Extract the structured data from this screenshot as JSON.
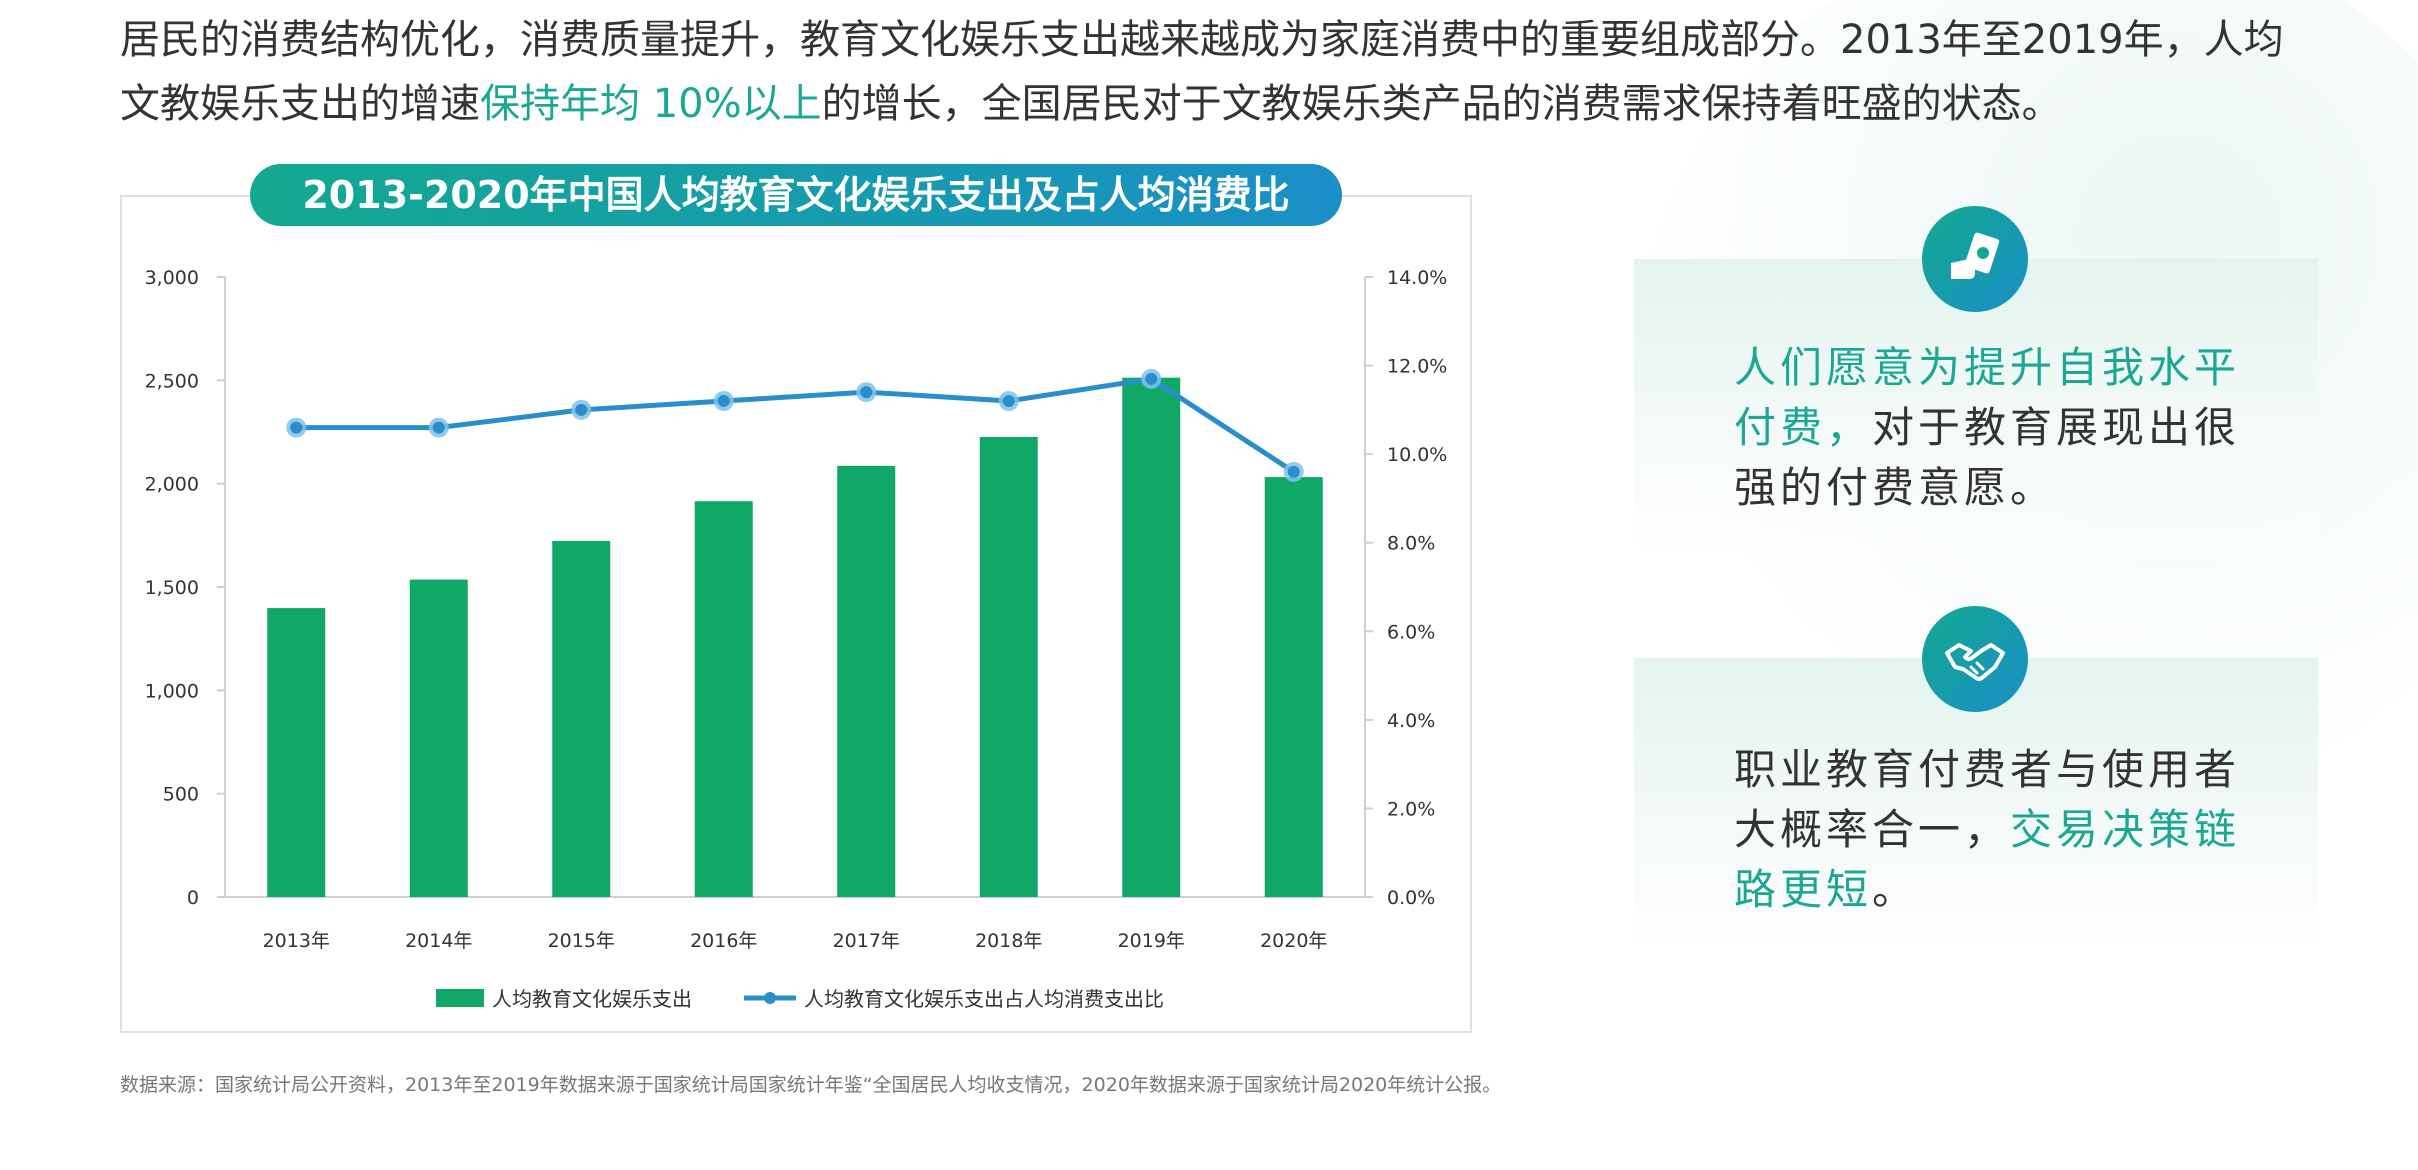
{
  "intro": {
    "part1": "居民的消费结构优化，消费质量提升，教育文化娱乐支出越来越成为家庭消费中的重要组成部分。2013年至2019年，人均文教娱乐支出的增速",
    "highlight": "保持年均 10%以上",
    "part2": "的增长，全国居民对于文教娱乐类产品的消费需求保持着旺盛的状态。"
  },
  "chart_data": {
    "type": "bar",
    "title": "2013-2020年中国人均教育文化娱乐支出及占人均消费比",
    "categories": [
      "2013年",
      "2014年",
      "2015年",
      "2016年",
      "2017年",
      "2018年",
      "2019年",
      "2020年"
    ],
    "series": [
      {
        "name": "人均教育文化娱乐支出",
        "type": "bar",
        "axis": "left",
        "values": [
          1398,
          1536,
          1723,
          1915,
          2086,
          2226,
          2513,
          2032
        ]
      },
      {
        "name": "人均教育文化娱乐支出占人均消费支出比",
        "type": "line",
        "axis": "right",
        "values": [
          10.6,
          10.6,
          11.0,
          11.2,
          11.4,
          11.2,
          11.7,
          9.6
        ]
      }
    ],
    "y_left": {
      "min": 0,
      "max": 3000,
      "ticks": [
        "0",
        "500",
        "1,000",
        "1,500",
        "2,000",
        "2,500",
        "3,000"
      ]
    },
    "y_right": {
      "min": 0,
      "max": 14,
      "ticks": [
        "0.0%",
        "2.0%",
        "4.0%",
        "6.0%",
        "8.0%",
        "10.0%",
        "12.0%",
        "14.0%"
      ]
    },
    "legend_position": "bottom",
    "grid": false,
    "colors": {
      "bar": "#11a766",
      "line": "#2a8ecb",
      "marker": "#7ec3ea"
    }
  },
  "cards": [
    {
      "icon": "money-hand-icon",
      "highlight": "人们愿意为提升自我水平付费，",
      "text": "对于教育展现出很强的付费意愿。"
    },
    {
      "icon": "handshake-icon",
      "text": "职业教育付费者与使用者大概率合一，",
      "highlight": "交易决策链路更短",
      "tail": "。"
    }
  ],
  "source": "数据来源：国家统计局公开资料，2013年至2019年数据来源于国家统计局国家统计年鉴“全国居民人均收支情况，2020年数据来源于国家统计局2020年统计公报。"
}
